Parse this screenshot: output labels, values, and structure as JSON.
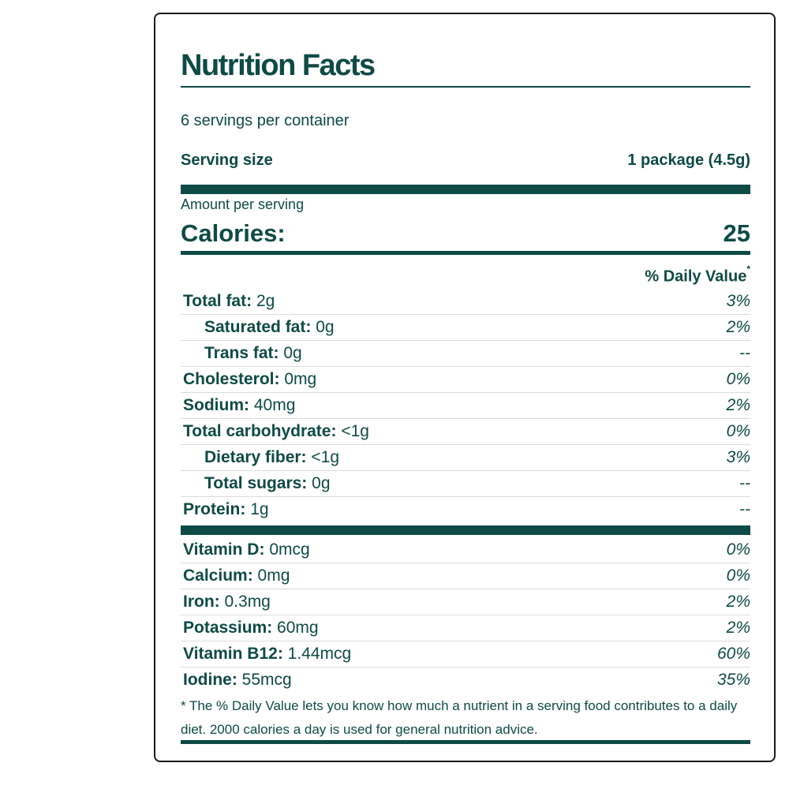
{
  "label": {
    "title": "Nutrition Facts",
    "servings_per_container": "6 servings per container",
    "serving_size_label": "Serving size",
    "serving_size_value": "1 package (4.5g)",
    "amount_per_serving": "Amount per serving",
    "calories_label": "Calories:",
    "calories_value": "25",
    "daily_value_header": "% Daily Value",
    "daily_value_mark": "*",
    "nutrients": [
      {
        "name": "Total fat:",
        "amount": "2g",
        "dv": "3%"
      },
      {
        "name": "Saturated fat:",
        "amount": "0g",
        "dv": "2%"
      },
      {
        "name": "Trans fat:",
        "amount": "0g",
        "dv": "--"
      },
      {
        "name": "Cholesterol:",
        "amount": "0mg",
        "dv": "0%"
      },
      {
        "name": "Sodium:",
        "amount": "40mg",
        "dv": "2%"
      },
      {
        "name": "Total carbohydrate:",
        "amount": "<1g",
        "dv": "0%"
      },
      {
        "name": "Dietary fiber:",
        "amount": "<1g",
        "dv": "3%"
      },
      {
        "name": "Total sugars:",
        "amount": "0g",
        "dv": "--"
      },
      {
        "name": "Protein:",
        "amount": "1g",
        "dv": "--"
      }
    ],
    "vitamins": [
      {
        "name": "Vitamin D:",
        "amount": "0mcg",
        "dv": "0%"
      },
      {
        "name": "Calcium:",
        "amount": "0mg",
        "dv": "0%"
      },
      {
        "name": "Iron:",
        "amount": "0.3mg",
        "dv": "2%"
      },
      {
        "name": "Potassium:",
        "amount": "60mg",
        "dv": "2%"
      },
      {
        "name": "Vitamin B12:",
        "amount": "1.44mcg",
        "dv": "60%"
      },
      {
        "name": "Iodine:",
        "amount": "55mcg",
        "dv": "35%"
      }
    ],
    "footnote": "* The % Daily Value lets you know how much a nutrient in a serving food contributes to a daily diet. 2000 calories a day is used for general nutrition advice.",
    "colors": {
      "text": "#0e4a46",
      "bars": "#0e4a46",
      "border": "#1a1a1a",
      "row_divider": "#dcdcdc"
    }
  }
}
